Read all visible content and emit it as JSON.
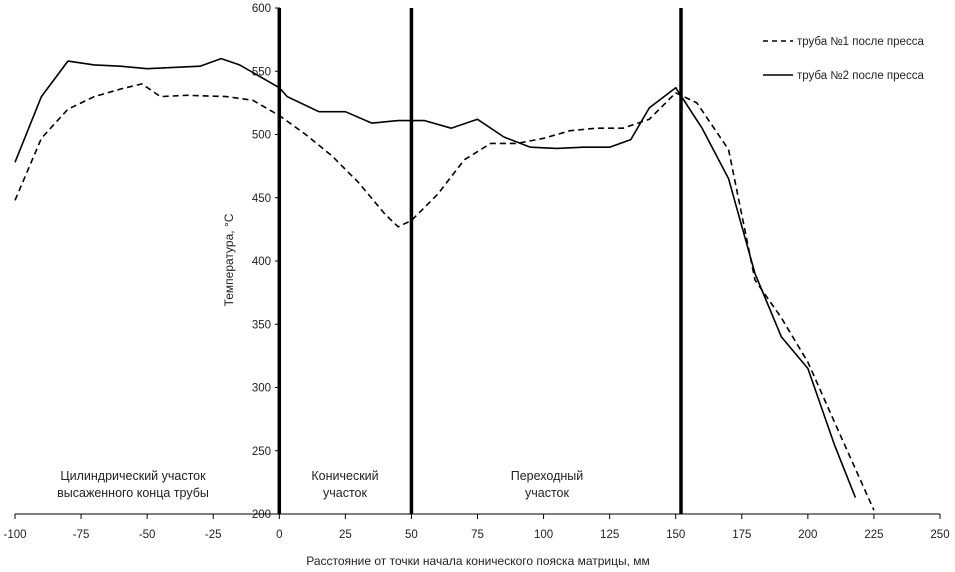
{
  "chart_data": {
    "type": "line",
    "title": "",
    "xlabel": "Расстояние от  точки начала конического пояска матрицы, мм",
    "ylabel": "Температура, °С",
    "xlim": [
      -100,
      250
    ],
    "ylim": [
      200,
      600
    ],
    "xticks": [
      -100,
      -75,
      -50,
      -25,
      0,
      25,
      50,
      75,
      100,
      125,
      150,
      175,
      200,
      225,
      250
    ],
    "yticks": [
      250,
      300,
      350,
      400,
      450,
      500,
      550,
      600
    ],
    "xtick_labels": [
      "-100",
      "-75",
      "-50",
      "-25",
      "0",
      "25",
      "50",
      "75",
      "100",
      "125",
      "150",
      "175",
      "200",
      "225",
      "250"
    ],
    "ytick_labels": [
      "250",
      "300",
      "350",
      "400",
      "450",
      "500",
      "550",
      "600"
    ],
    "ytick_bottom_label": "200",
    "grid": false,
    "legend_position": "top-right",
    "series": [
      {
        "name": "труба №1 после пресса",
        "style": "dashed",
        "color": "#000000",
        "x": [
          -100,
          -90,
          -80,
          -70,
          -60,
          -52,
          -45,
          -35,
          -20,
          -10,
          0,
          10,
          20,
          30,
          40,
          45,
          50,
          60,
          70,
          80,
          90,
          100,
          110,
          120,
          130,
          140,
          150,
          158,
          170,
          180,
          190,
          200,
          210,
          225
        ],
        "y": [
          448,
          497,
          520,
          530,
          536,
          540,
          530,
          531,
          530,
          527,
          515,
          500,
          483,
          462,
          437,
          427,
          432,
          453,
          480,
          493,
          493,
          497,
          503,
          505,
          505,
          512,
          533,
          525,
          488,
          385,
          355,
          320,
          273,
          203
        ]
      },
      {
        "name": "труба №2 после пресса",
        "style": "solid",
        "color": "#000000",
        "x": [
          -100,
          -90,
          -80,
          -70,
          -60,
          -50,
          -30,
          -22,
          -15,
          0,
          3,
          15,
          25,
          35,
          45,
          55,
          65,
          75,
          85,
          95,
          105,
          115,
          125,
          133,
          140,
          150,
          160,
          170,
          180,
          190,
          200,
          210,
          218
        ],
        "y": [
          478,
          530,
          558,
          555,
          554,
          552,
          554,
          560,
          555,
          537,
          530,
          518,
          518,
          509,
          511,
          511,
          505,
          512,
          498,
          490,
          489,
          490,
          490,
          496,
          521,
          537,
          505,
          465,
          390,
          340,
          315,
          255,
          213
        ]
      }
    ],
    "vertical_lines": [
      0,
      50,
      152
    ],
    "annotations": [
      {
        "line1": "Цилиндрический участок",
        "line2": "высаженного конца трубы"
      },
      {
        "line1": "Конический",
        "line2": "участок"
      },
      {
        "line1": "Переходный",
        "line2": "участок"
      }
    ]
  }
}
